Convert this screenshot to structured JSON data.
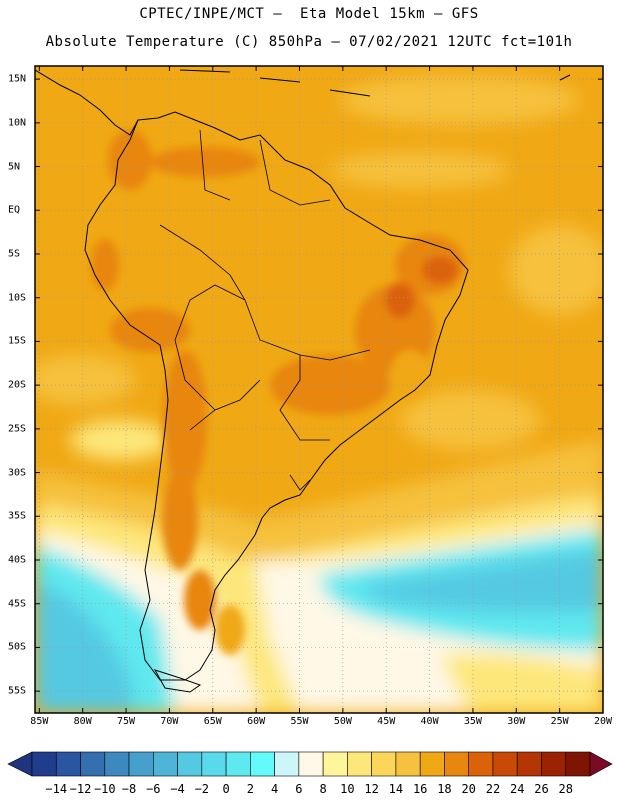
{
  "header": {
    "line1": "CPTEC/INPE/MCT –  Eta Model 15km – GFS",
    "line2": "Absolute Temperature (C) 850hPa – 07/02/2021 12UTC fct=101h"
  },
  "map": {
    "lat_labels": [
      "15N",
      "10N",
      "5N",
      "EQ",
      "5S",
      "10S",
      "15S",
      "20S",
      "25S",
      "30S",
      "35S",
      "40S",
      "45S",
      "50S",
      "55S"
    ],
    "lat_values": [
      15,
      10,
      5,
      0,
      -5,
      -10,
      -15,
      -20,
      -25,
      -30,
      -35,
      -40,
      -45,
      -50,
      -55
    ],
    "lon_labels": [
      "85W",
      "80W",
      "75W",
      "70W",
      "65W",
      "60W",
      "55W",
      "50W",
      "45W",
      "40W",
      "35W",
      "30W",
      "25W",
      "20W"
    ],
    "lon_values": [
      -85,
      -80,
      -75,
      -70,
      -65,
      -60,
      -55,
      -50,
      -45,
      -40,
      -35,
      -30,
      -25,
      -20
    ],
    "lon_range": [
      -85.5,
      -20
    ],
    "lat_range": [
      -57.5,
      16.5
    ]
  },
  "colorbar": {
    "labels": [
      "-14",
      "-12",
      "-10",
      "-8",
      "-6",
      "-4",
      "-2",
      "0",
      "2",
      "4",
      "6",
      "8",
      "10",
      "12",
      "14",
      "16",
      "18",
      "20",
      "22",
      "24",
      "26",
      "28"
    ],
    "colors": [
      "#1f3d8c",
      "#2a55a0",
      "#3470b0",
      "#3d88bf",
      "#46a0cc",
      "#4fb5d8",
      "#55c9e2",
      "#5ad9ea",
      "#5ee8ef",
      "#62fafa",
      "#cdf6fa",
      "#fff8e6",
      "#fff59a",
      "#fde77a",
      "#fbd65a",
      "#f6c13e",
      "#f0a814",
      "#e8860d",
      "#db6209",
      "#c84a06",
      "#b33604",
      "#9b2203",
      "#7d1502"
    ],
    "min_color": "#1f3580",
    "max_color": "#7a0a25"
  }
}
